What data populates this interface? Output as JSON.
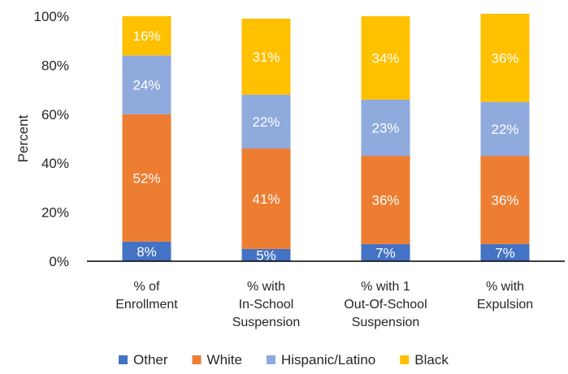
{
  "chart_data": {
    "type": "bar",
    "stacked": true,
    "title": "",
    "xlabel": "",
    "ylabel": "Percent",
    "ylim": [
      0,
      100
    ],
    "yticks": [
      "0%",
      "20%",
      "40%",
      "60%",
      "80%",
      "100%"
    ],
    "grid": false,
    "legend_position": "bottom",
    "categories": [
      [
        "% of",
        "Enrollment"
      ],
      [
        "% with",
        "In-School",
        "Suspension"
      ],
      [
        "% with 1",
        "Out-Of-School",
        "Suspension"
      ],
      [
        "% with",
        "Expulsion"
      ]
    ],
    "series": [
      {
        "name": "Other",
        "color": "#4472C4",
        "values": [
          8,
          5,
          7,
          7
        ],
        "labels": [
          "8%",
          "5%",
          "7%",
          "7%"
        ]
      },
      {
        "name": "White",
        "color": "#ED7D31",
        "values": [
          52,
          41,
          36,
          36
        ],
        "labels": [
          "52%",
          "41%",
          "36%",
          "36%"
        ]
      },
      {
        "name": "Hispanic/Latino",
        "color": "#8FAADC",
        "values": [
          24,
          22,
          23,
          22
        ],
        "labels": [
          "24%",
          "22%",
          "23%",
          "22%"
        ]
      },
      {
        "name": "Black",
        "color": "#FFC000",
        "values": [
          16,
          31,
          34,
          36
        ],
        "labels": [
          "16%",
          "31%",
          "34%",
          "36%"
        ]
      }
    ]
  }
}
